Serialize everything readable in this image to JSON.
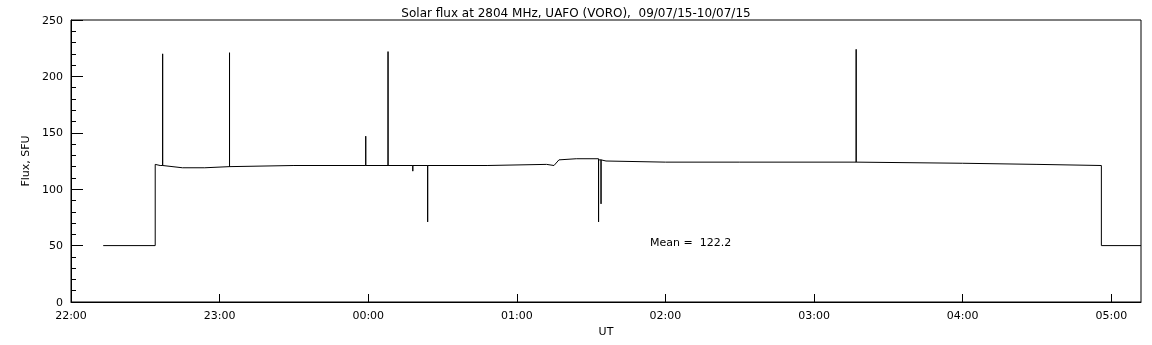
{
  "chart_data": {
    "type": "line",
    "title": "Solar flux at 2804 MHz, UAFO (VORO),  09/07/15-10/07/15",
    "xlabel": "UT",
    "ylabel": "Flux, SFU",
    "annotations": [
      "Mean =  122.2"
    ],
    "xlim": [
      "--07-09T22:00",
      "--07-10T05:12"
    ],
    "xticks": [
      {
        "value": "--07-09T22:00",
        "label": "22:00"
      },
      {
        "value": "--07-09T23:00",
        "label": "23:00"
      },
      {
        "value": "--07-10T00:00",
        "label": "00:00"
      },
      {
        "value": "--07-10T01:00",
        "label": "01:00"
      },
      {
        "value": "--07-10T02:00",
        "label": "02:00"
      },
      {
        "value": "--07-10T03:00",
        "label": "03:00"
      },
      {
        "value": "--07-10T04:00",
        "label": "04:00"
      },
      {
        "value": "--07-10T05:00",
        "label": "05:00"
      }
    ],
    "ylim": [
      0,
      250
    ],
    "yticks": [
      0,
      50,
      100,
      150,
      200,
      250
    ],
    "grid": false,
    "marker": "none",
    "line_style": "solid",
    "series": [
      {
        "color": "#000000",
        "x": [
          "--07-09T22:13",
          "--07-09T22:34",
          "--07-09T22:34",
          "--07-09T22:36",
          "--07-09T22:37",
          "--07-09T22:37",
          "--07-09T22:37",
          "--07-09T22:45",
          "--07-09T22:54",
          "--07-09T23:04",
          "--07-09T23:04",
          "--07-09T23:04",
          "--07-09T23:30",
          "--07-09T23:59",
          "--07-09T23:59",
          "--07-09T23:59",
          "--07-10T00:08",
          "--07-10T00:08",
          "--07-10T00:08",
          "--07-10T00:18",
          "--07-10T00:18",
          "--07-10T00:18",
          "--07-10T00:24",
          "--07-10T00:24",
          "--07-10T00:24",
          "--07-10T00:48",
          "--07-10T01:12",
          "--07-10T01:15",
          "--07-10T01:17",
          "--07-10T01:24",
          "--07-10T01:33",
          "--07-10T01:33",
          "--07-10T01:33",
          "--07-10T01:34",
          "--07-10T01:34",
          "--07-10T01:34",
          "--07-10T01:36",
          "--07-10T02:00",
          "--07-10T02:30",
          "--07-10T03:17",
          "--07-10T03:17",
          "--07-10T03:17",
          "--07-10T04:00",
          "--07-10T04:30",
          "--07-10T04:56",
          "--07-10T04:56",
          "--07-10T05:12"
        ],
        "values": [
          50,
          50,
          122,
          121,
          121,
          220,
          121,
          119,
          119,
          120,
          221,
          120,
          121,
          121,
          147,
          121,
          121,
          222,
          121,
          121,
          116,
          121,
          121,
          71,
          121,
          121,
          122,
          121,
          126,
          127,
          127,
          71,
          126,
          126,
          87,
          126,
          125,
          124,
          124,
          124,
          224,
          124,
          123,
          122,
          121,
          50,
          50
        ]
      }
    ]
  }
}
